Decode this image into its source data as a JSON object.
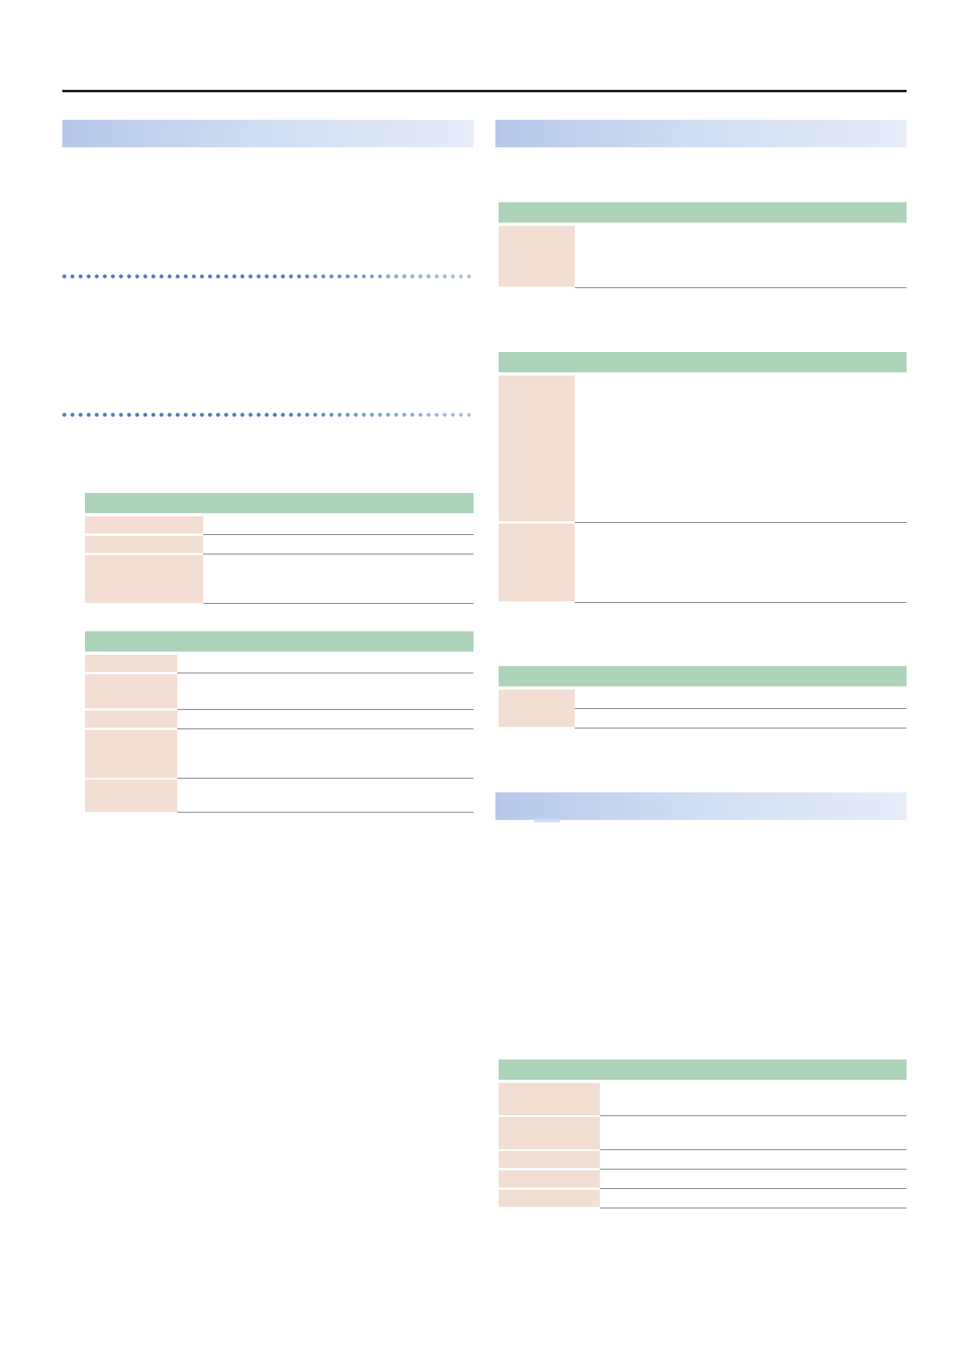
{
  "page": {
    "sections": [
      {
        "id": "section-left-1",
        "title": ""
      },
      {
        "id": "section-right-1",
        "title": ""
      },
      {
        "id": "section-right-2",
        "title": ""
      }
    ],
    "tables": [
      {
        "id": "table-left-1",
        "header": "",
        "rows": [
          {
            "param": "",
            "value": ""
          },
          {
            "param": "",
            "value": ""
          },
          {
            "param": "",
            "value": ""
          }
        ]
      },
      {
        "id": "table-left-2",
        "header": "",
        "rows": [
          {
            "param": "",
            "value": ""
          },
          {
            "param": "",
            "value": ""
          },
          {
            "param": "",
            "value": ""
          },
          {
            "param": "",
            "value": ""
          },
          {
            "param": "",
            "value": ""
          }
        ]
      },
      {
        "id": "table-right-1",
        "header": "",
        "rows": [
          {
            "param": "",
            "value": ""
          }
        ]
      },
      {
        "id": "table-right-2",
        "header": "",
        "rows": [
          {
            "param": "",
            "value": ""
          },
          {
            "param": "",
            "value": ""
          }
        ]
      },
      {
        "id": "table-right-3",
        "header": "",
        "rows": [
          {
            "param": "",
            "value": ""
          },
          {
            "param": "",
            "value": ""
          }
        ]
      },
      {
        "id": "table-right-4",
        "header": "",
        "rows": [
          {
            "param": "",
            "value": ""
          },
          {
            "param": "",
            "value": ""
          },
          {
            "param": "",
            "value": ""
          },
          {
            "param": "",
            "value": ""
          },
          {
            "param": "",
            "value": ""
          }
        ]
      }
    ],
    "colors": {
      "section_bar_start": "#b6c8ea",
      "section_bar_end": "#e6ecf8",
      "table_header": "#add3b9",
      "param_cell": "#f2ded2",
      "row_line": "#7a7a7a",
      "dotted_rule": "#4e7cc2",
      "top_rule": "#1a1a1a"
    }
  }
}
